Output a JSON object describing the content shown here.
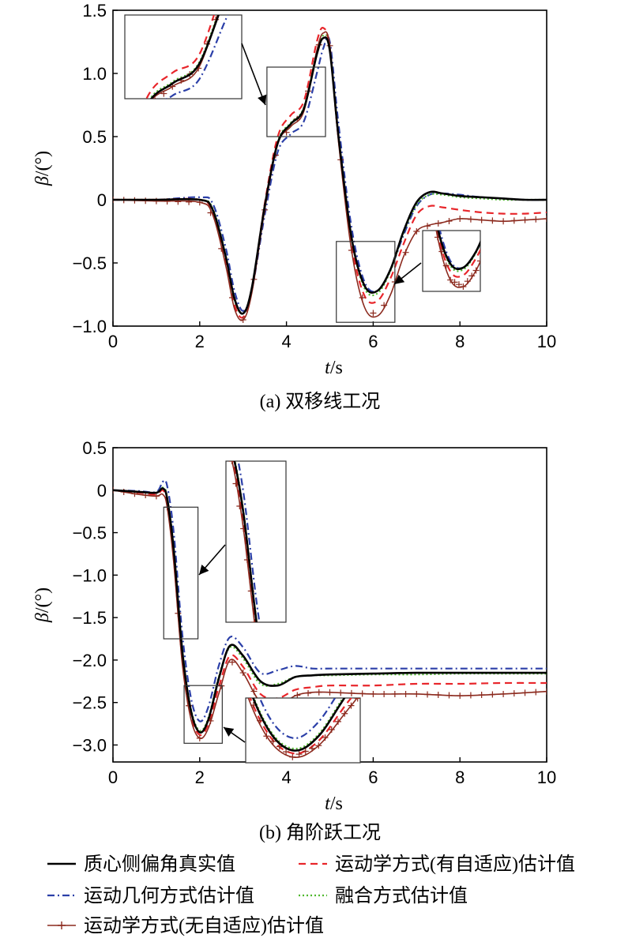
{
  "chart_data": [
    {
      "type": "line",
      "caption": "(a) 双移线工况",
      "xlabel": "t/s",
      "ylabel": "β/(°)",
      "xlim": [
        0,
        10
      ],
      "ylim": [
        -1.0,
        1.5
      ],
      "xticks": [
        "0",
        "2",
        "4",
        "6",
        "8",
        "10"
      ],
      "yticks": [
        "−1.0",
        "−0.5",
        "0",
        "0.5",
        "1.0",
        "1.5"
      ],
      "x": [
        0,
        1,
        2,
        2.3,
        2.6,
        2.8,
        3.0,
        3.2,
        3.5,
        3.8,
        4.1,
        4.4,
        4.7,
        4.85,
        5.0,
        5.2,
        5.5,
        5.8,
        6.1,
        6.4,
        6.7,
        7.0,
        7.3,
        7.6,
        8,
        8.5,
        9,
        9.5,
        10
      ],
      "series": [
        {
          "name": "质心侧偏角真实值",
          "values": [
            0,
            0,
            0,
            -0.08,
            -0.45,
            -0.78,
            -0.9,
            -0.7,
            -0.05,
            0.45,
            0.6,
            0.72,
            1.15,
            1.28,
            1.18,
            0.5,
            -0.3,
            -0.68,
            -0.72,
            -0.55,
            -0.25,
            -0.02,
            0.06,
            0.05,
            0.03,
            0.02,
            0.01,
            0.0,
            0.0
          ]
        },
        {
          "name": "运动学方式(有自适应)估计值",
          "values": [
            0,
            0,
            0,
            -0.1,
            -0.5,
            -0.83,
            -0.93,
            -0.72,
            -0.03,
            0.5,
            0.67,
            0.78,
            1.25,
            1.36,
            1.2,
            0.48,
            -0.35,
            -0.76,
            -0.8,
            -0.62,
            -0.35,
            -0.12,
            -0.05,
            -0.06,
            -0.08,
            -0.1,
            -0.11,
            -0.11,
            -0.1
          ]
        },
        {
          "name": "运动几何方式估计值",
          "values": [
            0,
            0,
            0.02,
            -0.03,
            -0.38,
            -0.72,
            -0.88,
            -0.72,
            -0.12,
            0.38,
            0.52,
            0.62,
            1.0,
            1.2,
            1.25,
            0.6,
            -0.22,
            -0.65,
            -0.72,
            -0.55,
            -0.28,
            -0.05,
            0.04,
            0.05,
            0.04,
            0.02,
            0.01,
            0.0,
            0.0
          ]
        },
        {
          "name": "融合方式估计值",
          "values": [
            0,
            0,
            0,
            -0.07,
            -0.44,
            -0.79,
            -0.9,
            -0.71,
            -0.06,
            0.46,
            0.61,
            0.73,
            1.17,
            1.3,
            1.2,
            0.5,
            -0.3,
            -0.7,
            -0.74,
            -0.56,
            -0.26,
            -0.04,
            0.04,
            0.04,
            0.02,
            0.01,
            0.0,
            0.0,
            0.0
          ]
        },
        {
          "name": "运动学方式(无自适应)估计值",
          "values": [
            0,
            -0.01,
            -0.02,
            -0.12,
            -0.52,
            -0.86,
            -0.95,
            -0.74,
            -0.08,
            0.44,
            0.58,
            0.7,
            1.18,
            1.32,
            1.22,
            0.46,
            -0.4,
            -0.85,
            -0.92,
            -0.75,
            -0.45,
            -0.25,
            -0.2,
            -0.18,
            -0.15,
            -0.16,
            -0.17,
            -0.16,
            -0.15
          ]
        }
      ]
    },
    {
      "type": "line",
      "caption": "(b) 角阶跃工况",
      "xlabel": "t/s",
      "ylabel": "β/(°)",
      "xlim": [
        0,
        10
      ],
      "ylim": [
        -3.2,
        0.5
      ],
      "xticks": [
        "0",
        "2",
        "4",
        "6",
        "8",
        "10"
      ],
      "yticks": [
        "0.5",
        "0",
        "−0.5",
        "−1.0",
        "−1.5",
        "−2.0",
        "−2.5",
        "−3.0"
      ],
      "x": [
        0,
        0.6,
        1.0,
        1.15,
        1.25,
        1.4,
        1.6,
        1.8,
        2.0,
        2.2,
        2.45,
        2.7,
        3.0,
        3.4,
        3.8,
        4.2,
        4.6,
        5,
        6,
        7,
        8,
        9,
        10
      ],
      "series": [
        {
          "name": "质心侧偏角真实值",
          "values": [
            0,
            -0.02,
            -0.03,
            0.02,
            -0.1,
            -0.7,
            -1.9,
            -2.6,
            -2.85,
            -2.7,
            -2.2,
            -1.83,
            -1.95,
            -2.25,
            -2.3,
            -2.2,
            -2.18,
            -2.17,
            -2.16,
            -2.15,
            -2.15,
            -2.15,
            -2.15
          ]
        },
        {
          "name": "运动学方式(有自适应)估计值",
          "values": [
            0,
            -0.03,
            -0.05,
            0,
            -0.15,
            -0.8,
            -2.0,
            -2.65,
            -2.88,
            -2.75,
            -2.3,
            -1.95,
            -2.08,
            -2.4,
            -2.45,
            -2.35,
            -2.32,
            -2.3,
            -2.3,
            -2.28,
            -2.28,
            -2.27,
            -2.27
          ]
        },
        {
          "name": "运动几何方式估计值",
          "values": [
            0,
            -0.01,
            -0.02,
            0.1,
            0.05,
            -0.5,
            -1.7,
            -2.45,
            -2.72,
            -2.55,
            -2.05,
            -1.73,
            -1.85,
            -2.15,
            -2.12,
            -2.07,
            -2.1,
            -2.1,
            -2.1,
            -2.1,
            -2.1,
            -2.1,
            -2.1
          ]
        },
        {
          "name": "融合方式估计值",
          "values": [
            0,
            -0.02,
            -0.03,
            0.03,
            -0.08,
            -0.68,
            -1.88,
            -2.58,
            -2.83,
            -2.68,
            -2.18,
            -1.85,
            -1.98,
            -2.28,
            -2.28,
            -2.2,
            -2.18,
            -2.18,
            -2.17,
            -2.17,
            -2.16,
            -2.16,
            -2.16
          ]
        },
        {
          "name": "运动学方式(无自适应)估计值",
          "values": [
            0,
            -0.05,
            -0.07,
            -0.05,
            -0.2,
            -0.85,
            -2.05,
            -2.7,
            -2.92,
            -2.8,
            -2.38,
            -2.0,
            -2.15,
            -2.5,
            -2.55,
            -2.42,
            -2.38,
            -2.38,
            -2.4,
            -2.4,
            -2.42,
            -2.4,
            -2.37
          ]
        }
      ]
    }
  ],
  "legend": [
    {
      "label": "质心侧偏角真实值",
      "color": "#000000",
      "style": "solid"
    },
    {
      "label": "运动学方式(有自适应)估计值",
      "color": "#e8262b",
      "style": "dashed"
    },
    {
      "label": "运动几何方式估计值",
      "color": "#2b3fa8",
      "style": "dashdot"
    },
    {
      "label": "融合方式估计值",
      "color": "#4fb82e",
      "style": "dotted"
    },
    {
      "label": "运动学方式(无自适应)估计值",
      "color": "#8c2a1e",
      "style": "plus"
    }
  ]
}
